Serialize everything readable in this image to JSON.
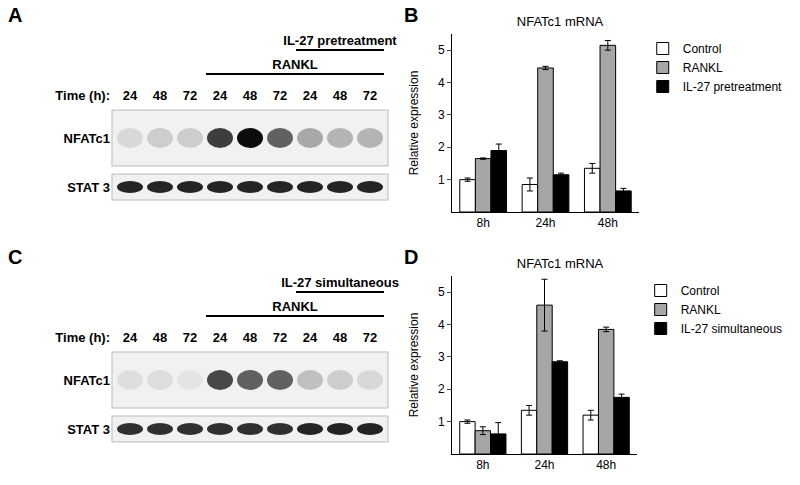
{
  "blots": [
    {
      "panel": "A",
      "time_label": "Time (h):",
      "times": [
        24,
        48,
        72,
        24,
        48,
        72,
        24,
        48,
        72
      ],
      "groups": [
        {
          "label": "RANKL",
          "from": 3,
          "to": 8
        },
        {
          "label": "IL-27 pretreatment",
          "from": 6,
          "to": 8
        }
      ],
      "rows": [
        {
          "label": "NFATc1",
          "intensity": [
            0.1,
            0.15,
            0.15,
            0.75,
            0.95,
            0.6,
            0.3,
            0.25,
            0.25
          ]
        },
        {
          "label": "STAT 3",
          "intensity": [
            0.85,
            0.85,
            0.85,
            0.85,
            0.85,
            0.85,
            0.85,
            0.85,
            0.85
          ]
        }
      ]
    },
    {
      "panel": "C",
      "time_label": "Time (h):",
      "times": [
        24,
        48,
        72,
        24,
        48,
        72,
        24,
        48,
        72
      ],
      "groups": [
        {
          "label": "RANKL",
          "from": 3,
          "to": 8
        },
        {
          "label": "IL-27 simultaneous",
          "from": 6,
          "to": 8
        }
      ],
      "rows": [
        {
          "label": "NFATc1",
          "intensity": [
            0.08,
            0.08,
            0.05,
            0.7,
            0.6,
            0.6,
            0.2,
            0.15,
            0.1
          ]
        },
        {
          "label": "STAT 3",
          "intensity": [
            0.8,
            0.8,
            0.8,
            0.8,
            0.8,
            0.8,
            0.85,
            0.85,
            0.85
          ]
        }
      ]
    }
  ],
  "chart_data": [
    {
      "panel": "B",
      "type": "bar",
      "title": "NFATc1 mRNA",
      "y_label": "Relative expression",
      "categories": [
        "8h",
        "24h",
        "48h"
      ],
      "series": [
        {
          "name": "Control",
          "color": "#ffffff",
          "values": [
            1.0,
            0.85,
            1.35
          ],
          "errors": [
            0.05,
            0.2,
            0.15
          ]
        },
        {
          "name": "RANKL",
          "color": "#a6a6a6",
          "values": [
            1.65,
            4.45,
            5.15
          ],
          "errors": [
            0.02,
            0.05,
            0.15
          ]
        },
        {
          "name": "IL-27 pretreatment",
          "color": "#000000",
          "values": [
            1.9,
            1.15,
            0.65
          ],
          "errors": [
            0.2,
            0.05,
            0.08
          ]
        }
      ],
      "ylim": [
        0,
        5.5
      ],
      "yticks": [
        1,
        2,
        3,
        4,
        5
      ],
      "legend": "right"
    },
    {
      "panel": "D",
      "type": "bar",
      "title": "NFATc1 mRNA",
      "y_label": "Relative expression",
      "categories": [
        "8h",
        "24h",
        "48h"
      ],
      "series": [
        {
          "name": "Control",
          "color": "#ffffff",
          "values": [
            1.0,
            1.35,
            1.2
          ],
          "errors": [
            0.05,
            0.15,
            0.15
          ]
        },
        {
          "name": "RANKL",
          "color": "#a6a6a6",
          "values": [
            0.72,
            4.6,
            3.85
          ],
          "errors": [
            0.12,
            0.8,
            0.07
          ]
        },
        {
          "name": "IL-27 simultaneous",
          "color": "#000000",
          "values": [
            0.62,
            2.85,
            1.75
          ],
          "errors": [
            0.35,
            0.03,
            0.1
          ]
        }
      ],
      "ylim": [
        0,
        5.5
      ],
      "yticks": [
        1,
        2,
        3,
        4,
        5
      ],
      "legend": "right"
    }
  ]
}
